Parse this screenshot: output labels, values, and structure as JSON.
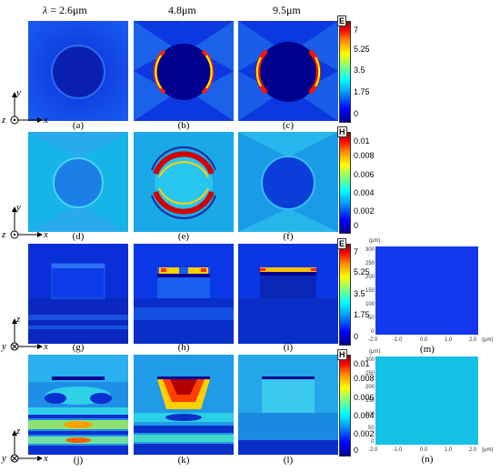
{
  "headers": {
    "lambda_symbol": "λ",
    "col1": " = 2.6μm",
    "col2": "4.8μm",
    "col3": "9.5μm"
  },
  "captions": [
    "(a)",
    "(b)",
    "(c)",
    "(d)",
    "(e)",
    "(f)",
    "(g)",
    "(h)",
    "(i)",
    "(j)",
    "(k)",
    "(l)",
    "(m)",
    "(n)"
  ],
  "colorbar_E": {
    "unit": "E",
    "ticks": [
      "7",
      "5.25",
      "3.5",
      "1.75",
      "0"
    ]
  },
  "colorbar_H": {
    "unit": "H",
    "ticks": [
      "0.01",
      "0.008",
      "0.006",
      "0.004",
      "0.002",
      "0"
    ]
  },
  "axes_top": {
    "z": "z",
    "y": "y",
    "x": "x"
  },
  "axes_bottom": {
    "y": "y",
    "z": "z",
    "x": "x"
  },
  "side_panel": {
    "y_unit": "(μm)",
    "y_ticks": [
      "300",
      "250",
      "200",
      "150",
      "100",
      "50",
      "0"
    ],
    "x_ticks": [
      "-2.0",
      "-1.0",
      "0.0",
      "1.0",
      "2.0"
    ],
    "x_unit": "(μm)"
  },
  "colors": {
    "deep_blue": "#00008f",
    "blue": "#0a36e6",
    "cyan": "#00ffff",
    "yellow": "#ffff00",
    "red": "#ff0000",
    "dark_red": "#8b0000"
  }
}
